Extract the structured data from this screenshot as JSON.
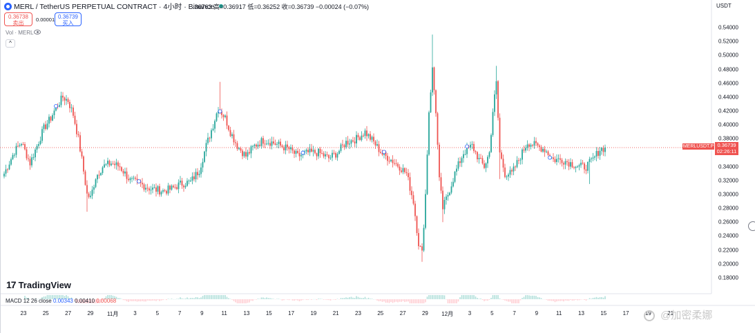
{
  "header": {
    "symbol": "MERL / TetherUS PERPETUAL CONTRACT · 4小时 · Binance",
    "ohlc_label": ".36763 高=0.36917 低=0.36252 收=0.36739 −0.00024 (−0.07%)"
  },
  "trade": {
    "sell_price": "0.36738",
    "sell_label": "卖出",
    "spread": "0.00001",
    "buy_price": "0.36739",
    "buy_label": "买入"
  },
  "indicators": {
    "volume_label": "Vol · MERL",
    "collapse_glyph": "^"
  },
  "axis": {
    "currency": "USDT",
    "y_ticks": [
      "0.54000",
      "0.52000",
      "0.50000",
      "0.48000",
      "0.46000",
      "0.44000",
      "0.42000",
      "0.40000",
      "0.38000",
      "0.36000",
      "0.34000",
      "0.32000",
      "0.30000",
      "0.28000",
      "0.26000",
      "0.24000",
      "0.22000",
      "0.20000",
      "0.18000"
    ],
    "x_ticks": [
      "23",
      "25",
      "27",
      "29",
      "11月",
      "3",
      "5",
      "7",
      "9",
      "11",
      "13",
      "15",
      "17",
      "19",
      "21",
      "23",
      "25",
      "27",
      "29",
      "12月",
      "3",
      "5",
      "7",
      "9",
      "11",
      "13",
      "15",
      "17",
      "19",
      "21"
    ]
  },
  "price_tag": {
    "symbol": "MERLUSDT.P",
    "price": "0.36739",
    "countdown": "02:26:11"
  },
  "branding": {
    "logo_text": "TradingView"
  },
  "macd": {
    "label": "MACD 12 26 close",
    "v1": "0.00343",
    "v2": "0.00410",
    "v3": "0.00068"
  },
  "watermark": {
    "text": "@加密柔娜"
  },
  "colors": {
    "up": "#26a69a",
    "down": "#ef5350",
    "accent": "#2962ff"
  },
  "chart_data": {
    "type": "candlestick",
    "timeframe": "4h",
    "ylim": [
      0.17,
      0.55
    ],
    "current_price": 0.36739,
    "grid": false,
    "waypoints": [
      [
        0,
        0.33
      ],
      [
        6,
        0.362
      ],
      [
        10,
        0.375
      ],
      [
        15,
        0.345
      ],
      [
        19,
        0.37
      ],
      [
        23,
        0.395
      ],
      [
        27,
        0.41
      ],
      [
        30,
        0.425
      ],
      [
        34,
        0.44
      ],
      [
        37,
        0.435
      ],
      [
        40,
        0.415
      ],
      [
        43,
        0.38
      ],
      [
        45,
        0.35
      ],
      [
        48,
        0.3
      ],
      [
        50,
        0.295
      ],
      [
        53,
        0.325
      ],
      [
        57,
        0.34
      ],
      [
        62,
        0.345
      ],
      [
        67,
        0.34
      ],
      [
        73,
        0.32
      ],
      [
        79,
        0.315
      ],
      [
        85,
        0.308
      ],
      [
        92,
        0.305
      ],
      [
        97,
        0.308
      ],
      [
        102,
        0.315
      ],
      [
        108,
        0.318
      ],
      [
        110,
        0.325
      ],
      [
        113,
        0.335
      ],
      [
        117,
        0.37
      ],
      [
        121,
        0.4
      ],
      [
        124,
        0.425
      ],
      [
        128,
        0.41
      ],
      [
        131,
        0.39
      ],
      [
        135,
        0.37
      ],
      [
        140,
        0.355
      ],
      [
        145,
        0.37
      ],
      [
        150,
        0.378
      ],
      [
        155,
        0.375
      ],
      [
        160,
        0.37
      ],
      [
        165,
        0.365
      ],
      [
        170,
        0.355
      ],
      [
        176,
        0.36
      ],
      [
        182,
        0.36
      ],
      [
        188,
        0.352
      ],
      [
        193,
        0.36
      ],
      [
        198,
        0.375
      ],
      [
        204,
        0.38
      ],
      [
        209,
        0.39
      ],
      [
        214,
        0.375
      ],
      [
        219,
        0.358
      ],
      [
        224,
        0.35
      ],
      [
        229,
        0.34
      ],
      [
        233,
        0.33
      ],
      [
        237,
        0.29
      ],
      [
        240,
        0.23
      ],
      [
        242,
        0.215
      ],
      [
        244,
        0.3
      ],
      [
        246,
        0.42
      ],
      [
        248,
        0.48
      ],
      [
        250,
        0.42
      ],
      [
        252,
        0.32
      ],
      [
        254,
        0.28
      ],
      [
        257,
        0.3
      ],
      [
        261,
        0.33
      ],
      [
        266,
        0.36
      ],
      [
        271,
        0.37
      ],
      [
        275,
        0.35
      ],
      [
        278,
        0.34
      ],
      [
        281,
        0.36
      ],
      [
        283,
        0.42
      ],
      [
        285,
        0.46
      ],
      [
        287,
        0.36
      ],
      [
        290,
        0.33
      ],
      [
        294,
        0.33
      ],
      [
        299,
        0.355
      ],
      [
        303,
        0.375
      ],
      [
        308,
        0.37
      ],
      [
        313,
        0.365
      ],
      [
        318,
        0.35
      ],
      [
        323,
        0.35
      ],
      [
        328,
        0.345
      ],
      [
        333,
        0.34
      ],
      [
        337,
        0.34
      ],
      [
        341,
        0.35
      ],
      [
        345,
        0.365
      ],
      [
        348,
        0.367
      ]
    ],
    "events": [
      {
        "i": 48,
        "low": 0.275
      },
      {
        "i": 125,
        "high": 0.462
      },
      {
        "i": 242,
        "low": 0.203
      },
      {
        "i": 248,
        "high": 0.53
      },
      {
        "i": 254,
        "low": 0.26
      },
      {
        "i": 285,
        "high": 0.485
      },
      {
        "i": 287,
        "low": 0.322
      },
      {
        "i": 339,
        "low": 0.315
      }
    ]
  }
}
